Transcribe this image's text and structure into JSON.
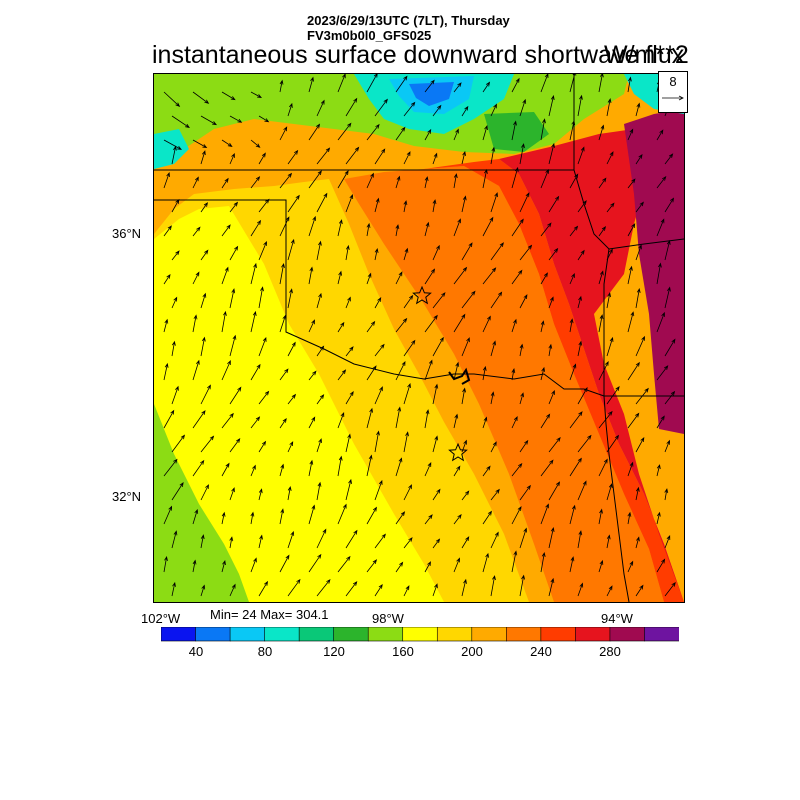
{
  "header": {
    "datetime": "2023/6/29/13UTC (7LT), Thursday",
    "model": "FV3m0b0l0_GFS025"
  },
  "title": "instantaneous surface downward shortwave flux",
  "units": "W/m**2",
  "reference_vector": {
    "label": "8"
  },
  "axes": {
    "lat_ticks": [
      "36°N",
      "32°N"
    ],
    "lon_ticks": [
      "102°W",
      "98°W",
      "94°W"
    ]
  },
  "stats": {
    "text": "Min= 24 Max= 304.1"
  },
  "colorbar": {
    "colors": [
      "#0a14f0",
      "#0a78f5",
      "#0ac8f5",
      "#0ae6c8",
      "#0ac878",
      "#2cb42c",
      "#8cdc14",
      "#ffff00",
      "#ffd700",
      "#ffaa00",
      "#ff7800",
      "#ff3c00",
      "#e6141e",
      "#a00a50",
      "#6e14a0"
    ],
    "labels": [
      "40",
      "80",
      "120",
      "160",
      "200",
      "240",
      "280"
    ]
  },
  "map": {
    "field_colors": {
      "green": "#8cdc14",
      "yellow": "#ffff00",
      "gold": "#ffd700",
      "orange1": "#ffaa00",
      "orange2": "#ff7800",
      "redorange": "#ff3c00",
      "red": "#e6141e",
      "maroon": "#a00a50",
      "cloud_teal": "#0ae6c8",
      "cloud_blue": "#0a78f5",
      "cloud_cyan": "#0ac8f5",
      "cloud_green": "#2cb42c"
    }
  }
}
